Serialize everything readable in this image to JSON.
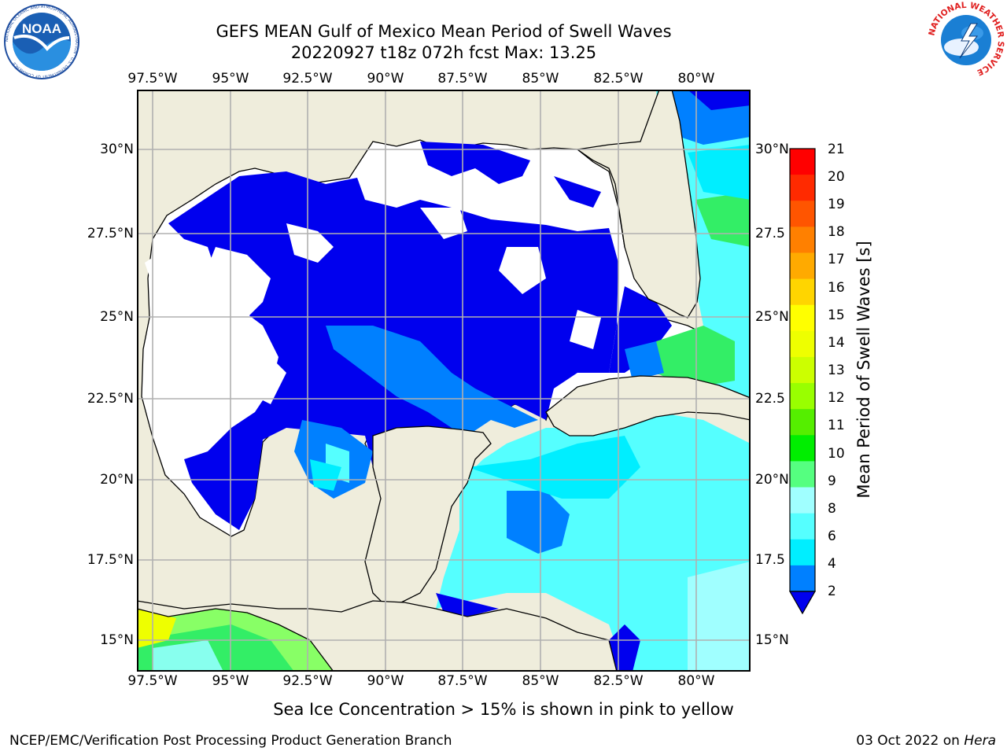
{
  "title": {
    "line1": "GEFS MEAN Gulf of Mexico Mean Period of Swell Waves",
    "line2": "20220927 t18z 072h fcst   Max: 13.25"
  },
  "map": {
    "lon_ticks": [
      "97.5°W",
      "95°W",
      "92.5°W",
      "90°W",
      "87.5°W",
      "85°W",
      "82.5°W",
      "80°W"
    ],
    "lat_ticks_left": [
      "30°N",
      "27.5°N",
      "25°N",
      "22.5°N",
      "20°N",
      "17.5°N",
      "15°N"
    ],
    "lat_ticks_right": [
      "30°N",
      "27.5",
      "25°N",
      "22.5",
      "20°N",
      "17.5",
      "15°N"
    ],
    "colors": {
      "land": "#efeddc",
      "coast": "#000000",
      "grid": "#b0b0b0",
      "blue": "#0000ee",
      "mid_blue": "#0080ff",
      "cyan": "#00eeff",
      "light_cyan": "#55ffff",
      "green": "#33ee66"
    }
  },
  "colorbar": {
    "label": "Mean Period of Swell Waves [s]",
    "ticks": [
      "21",
      "20",
      "19",
      "18",
      "17",
      "16",
      "15",
      "14",
      "13",
      "12",
      "11",
      "10",
      "9",
      "8",
      "6",
      "4",
      "2"
    ],
    "colors_top_to_bottom": [
      "#ff0000",
      "#ff2a00",
      "#ff5500",
      "#ff8000",
      "#ffaa00",
      "#ffd500",
      "#ffff00",
      "#eeff00",
      "#ccff00",
      "#99ff00",
      "#55ee00",
      "#00ee00",
      "#55ff80",
      "#a0ffff",
      "#55ffff",
      "#00eeff",
      "#0080ff",
      "#0000ee"
    ]
  },
  "note": "Sea Ice Concentration > 15% is shown in pink to yellow",
  "footer": {
    "left": "NCEP/EMC/Verification Post Processing Product Generation Branch",
    "right_date": "03 Oct 2022 on",
    "right_host": "Hera"
  },
  "logos": {
    "noaa": "NOAA",
    "noaa_ring": "NATIONAL OCEANIC AND ATMOSPHERIC ADMINISTRATION · U.S. DEPARTMENT OF COMMERCE",
    "nws_ring": "NATIONAL WEATHER SERVICE"
  }
}
